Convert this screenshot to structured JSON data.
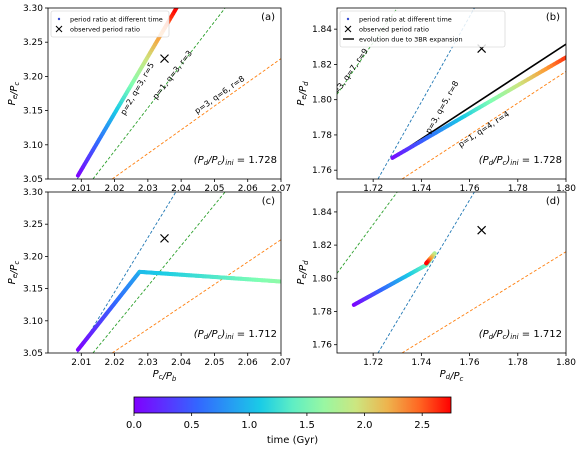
{
  "colorbar": {
    "label": "time (Gyr)",
    "ticks": [
      0.0,
      0.5,
      1.0,
      1.5,
      2.0,
      2.5
    ],
    "tick_labels": [
      "0.0",
      "0.5",
      "1.0",
      "1.5",
      "2.0",
      "2.5"
    ],
    "range": [
      0.0,
      2.75
    ],
    "colormap": "rainbow"
  },
  "chart_data": [
    {
      "panel": "(a)",
      "type": "scatter",
      "xlabel": "",
      "ylabel": "Pe/Pc",
      "xlim": [
        2.0,
        2.07
      ],
      "ylim": [
        3.05,
        3.3
      ],
      "xticks": [
        2.01,
        2.02,
        2.03,
        2.04,
        2.05,
        2.06,
        2.07
      ],
      "xtick_labels": [
        "2.01",
        "2.02",
        "2.03",
        "2.04",
        "2.05",
        "2.06",
        "2.07"
      ],
      "yticks": [
        3.05,
        3.1,
        3.15,
        3.2,
        3.25,
        3.3
      ],
      "ytick_labels": [
        "3.05",
        "3.10",
        "3.15",
        "3.20",
        "3.25",
        "3.30"
      ],
      "legend": {
        "placement": "top-left",
        "entries": [
          "period ratio at different time",
          "observed period ratio"
        ]
      },
      "annotation": "(Pd/Pc)ini = 1.728",
      "observed": {
        "x": 2.035,
        "y": 3.226
      },
      "resonances": [
        {
          "label": "p=2, q=3, r=5",
          "color": "#1f77b4",
          "points": [
            [
              2.0088,
              3.05
            ],
            [
              2.0384,
              3.3
            ]
          ],
          "label_at": [
            2.0275,
            3.18
          ]
        },
        {
          "label": "p=1, q=3, r=3",
          "color": "#2ca02c",
          "points": [
            [
              2.0135,
              3.05
            ],
            [
              2.0532,
              3.3
            ]
          ],
          "label_at": [
            2.038,
            3.2
          ]
        },
        {
          "label": "p=3, q=6, r=8",
          "color": "#ff7f0e",
          "points": [
            [
              2.0193,
              3.05
            ],
            [
              2.07,
              3.226
            ]
          ],
          "label_at": [
            2.052,
            3.17
          ]
        }
      ],
      "series": [
        {
          "name": "period ratio at different time",
          "color_by": "time",
          "segments": [
            {
              "x": [
                2.009,
                2.0386
              ],
              "y": [
                3.055,
                3.3
              ],
              "t": [
                0.0,
                2.75
              ]
            }
          ]
        }
      ]
    },
    {
      "panel": "(b)",
      "type": "scatter",
      "xlabel": "",
      "ylabel": "Pe/Pd",
      "xlim": [
        1.705,
        1.8
      ],
      "ylim": [
        1.755,
        1.852
      ],
      "xticks": [
        1.72,
        1.74,
        1.76,
        1.78,
        1.8
      ],
      "xtick_labels": [
        "1.72",
        "1.74",
        "1.76",
        "1.78",
        "1.80"
      ],
      "yticks": [
        1.76,
        1.78,
        1.8,
        1.82,
        1.84
      ],
      "ytick_labels": [
        "1.76",
        "1.78",
        "1.80",
        "1.82",
        "1.84"
      ],
      "legend": {
        "placement": "top-left",
        "entries": [
          "period ratio at different time",
          "observed period ratio",
          "evolution due to 3BR expansion"
        ]
      },
      "annotation": "(Pd/Pc)ini = 1.728",
      "observed": {
        "x": 1.765,
        "y": 1.829
      },
      "resonances": [
        {
          "label": "p=3, q=7, r=9",
          "color": "#2ca02c",
          "points": [
            [
              1.705,
              1.803
            ],
            [
              1.73,
              1.852
            ]
          ],
          "label_at": [
            1.711,
            1.814
          ]
        },
        {
          "label": "p=3, q=5, r=8",
          "color": "#1f77b4",
          "points": [
            [
              1.722,
              1.755
            ],
            [
              1.762,
              1.852
            ]
          ],
          "label_at": [
            1.7495,
            1.795
          ]
        },
        {
          "label": "p=1, q=4, r=4",
          "color": "#ff7f0e",
          "points": [
            [
              1.732,
              1.755
            ],
            [
              1.8,
              1.816
            ]
          ],
          "label_at": [
            1.7665,
            1.782
          ]
        }
      ],
      "evolution_line": {
        "name": "evolution due to 3BR expansion",
        "color": "#000000",
        "points": [
          [
            1.728,
            1.767
          ],
          [
            1.8,
            1.8315
          ]
        ]
      },
      "series": [
        {
          "name": "period ratio at different time",
          "color_by": "time",
          "segments": [
            {
              "x": [
                1.728,
                1.8
              ],
              "y": [
                1.767,
                1.824
              ],
              "t": [
                0.05,
                2.6
              ]
            }
          ]
        }
      ]
    },
    {
      "panel": "(c)",
      "type": "scatter",
      "xlabel": "Pc/Pb",
      "ylabel": "Pe/Pc",
      "xlim": [
        2.0,
        2.07
      ],
      "ylim": [
        3.05,
        3.3
      ],
      "xticks": [
        2.01,
        2.02,
        2.03,
        2.04,
        2.05,
        2.06,
        2.07
      ],
      "xtick_labels": [
        "2.01",
        "2.02",
        "2.03",
        "2.04",
        "2.05",
        "2.06",
        "2.07"
      ],
      "yticks": [
        3.05,
        3.1,
        3.15,
        3.2,
        3.25,
        3.3
      ],
      "ytick_labels": [
        "3.05",
        "3.10",
        "3.15",
        "3.20",
        "3.25",
        "3.30"
      ],
      "annotation": "(Pd/Pc)ini = 1.712",
      "observed": {
        "x": 2.035,
        "y": 3.228
      },
      "resonances": [
        {
          "color": "#1f77b4",
          "points": [
            [
              2.0088,
              3.05
            ],
            [
              2.0384,
              3.3
            ]
          ]
        },
        {
          "color": "#2ca02c",
          "points": [
            [
              2.0135,
              3.05
            ],
            [
              2.0532,
              3.3
            ]
          ]
        },
        {
          "color": "#ff7f0e",
          "points": [
            [
              2.0193,
              3.05
            ],
            [
              2.07,
              3.226
            ]
          ]
        }
      ],
      "series": [
        {
          "name": "period ratio at different time",
          "color_by": "time",
          "segments": [
            {
              "x": [
                2.009,
                2.0275
              ],
              "y": [
                3.055,
                3.176
              ],
              "t": [
                0.0,
                0.9
              ]
            },
            {
              "x": [
                2.0275,
                2.07
              ],
              "y": [
                3.176,
                3.161
              ],
              "t": [
                1.0,
                1.6
              ]
            }
          ]
        }
      ]
    },
    {
      "panel": "(d)",
      "type": "scatter",
      "xlabel": "Pd/Pc",
      "ylabel": "Pe/Pd",
      "xlim": [
        1.705,
        1.8
      ],
      "ylim": [
        1.755,
        1.852
      ],
      "xticks": [
        1.72,
        1.74,
        1.76,
        1.78,
        1.8
      ],
      "xtick_labels": [
        "1.72",
        "1.74",
        "1.76",
        "1.78",
        "1.80"
      ],
      "yticks": [
        1.76,
        1.78,
        1.8,
        1.82,
        1.84
      ],
      "ytick_labels": [
        "1.76",
        "1.78",
        "1.80",
        "1.82",
        "1.84"
      ],
      "annotation": "(Pd/Pc)ini = 1.712",
      "observed": {
        "x": 1.765,
        "y": 1.829
      },
      "resonances": [
        {
          "color": "#2ca02c",
          "points": [
            [
              1.705,
              1.803
            ],
            [
              1.73,
              1.852
            ]
          ]
        },
        {
          "color": "#1f77b4",
          "points": [
            [
              1.722,
              1.755
            ],
            [
              1.762,
              1.852
            ]
          ]
        },
        {
          "color": "#ff7f0e",
          "points": [
            [
              1.732,
              1.755
            ],
            [
              1.8,
              1.816
            ]
          ]
        }
      ],
      "series": [
        {
          "name": "period ratio at different time",
          "color_by": "time",
          "segments": [
            {
              "x": [
                1.712,
                1.742
              ],
              "y": [
                1.784,
                1.808
              ],
              "t": [
                0.0,
                1.4
              ]
            },
            {
              "x": [
                1.742,
                1.7455
              ],
              "y": [
                1.808,
                1.815
              ],
              "t": [
                1.4,
                1.7
              ]
            },
            {
              "x": [
                1.7455,
                1.742
              ],
              "y": [
                1.815,
                1.809
              ],
              "t": [
                1.7,
                2.75
              ]
            }
          ]
        }
      ]
    }
  ]
}
